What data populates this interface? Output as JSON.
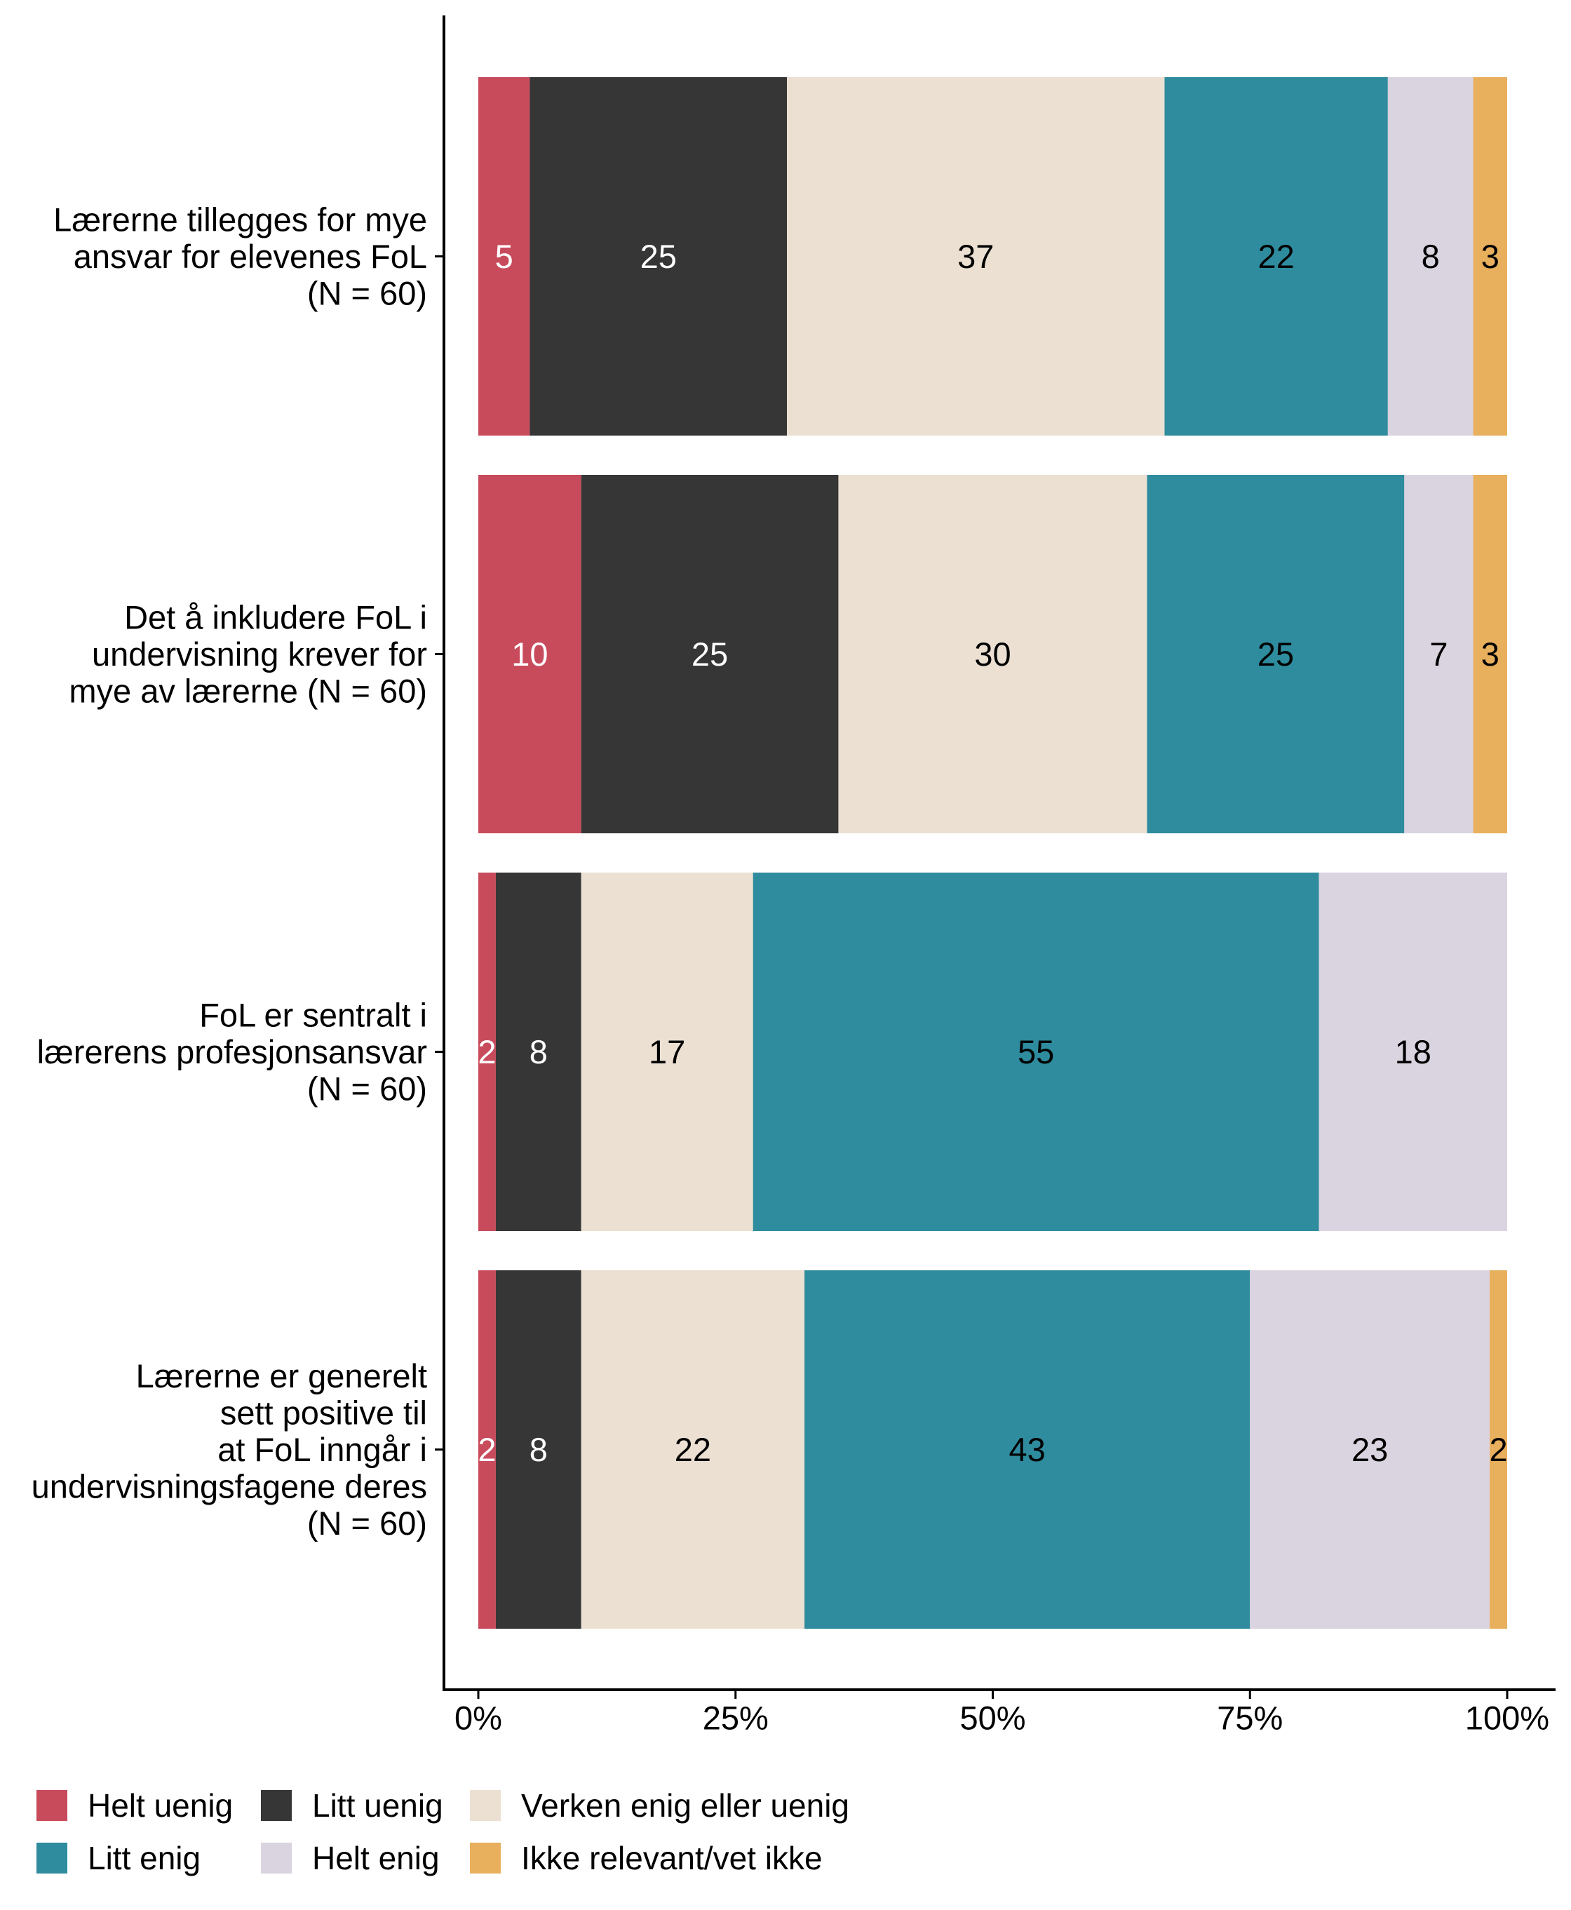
{
  "chart_data": {
    "type": "bar",
    "orientation": "horizontal",
    "stacked": true,
    "title": "",
    "xlabel": "",
    "ylabel": "",
    "xlim": [
      0,
      100
    ],
    "x_ticks": [
      0,
      25,
      50,
      75,
      100
    ],
    "x_tick_labels": [
      "0%",
      "25%",
      "50%",
      "75%",
      "100%"
    ],
    "grid": false,
    "legend_position": "bottom-left",
    "categories": [
      [
        "Lærerne tillegges for mye",
        "ansvar for elevenes FoL",
        "(N = 60)"
      ],
      [
        "Det å inkludere FoL i",
        "undervisning krever for",
        "mye av lærerne (N = 60)"
      ],
      [
        "FoL er sentralt i",
        "lærerens profesjonsansvar",
        "(N = 60)"
      ],
      [
        "Lærerne er generelt",
        "sett positive til",
        "at FoL inngår i",
        "undervisningsfagene deres",
        "(N = 60)"
      ]
    ],
    "series": [
      {
        "name": "Helt uenig",
        "color": "#C84B5C",
        "label_color": "#FFFFFF",
        "values": [
          5.0,
          10.0,
          1.7,
          1.7
        ],
        "labels": [
          "5",
          "10",
          "2",
          "2"
        ]
      },
      {
        "name": "Litt uenig",
        "color": "#363636",
        "label_color": "#FFFFFF",
        "values": [
          25.0,
          25.0,
          8.3,
          8.3
        ],
        "labels": [
          "25",
          "25",
          "8",
          "8"
        ]
      },
      {
        "name": "Verken enig eller uenig",
        "color": "#EBE0D2",
        "label_color": "#000000",
        "values": [
          36.7,
          30.0,
          16.7,
          21.7
        ],
        "labels": [
          "37",
          "30",
          "17",
          "22"
        ]
      },
      {
        "name": "Litt enig",
        "color": "#2E8C9E",
        "label_color": "#000000",
        "values": [
          21.7,
          25.0,
          55.0,
          43.3
        ],
        "labels": [
          "22",
          "25",
          "55",
          "43"
        ]
      },
      {
        "name": "Helt enig",
        "color": "#DAD3E0",
        "label_color": "#000000",
        "values": [
          8.3,
          6.7,
          18.3,
          23.3
        ],
        "labels": [
          "8",
          "7",
          "18",
          "23"
        ]
      },
      {
        "name": "Ikke relevant/vet ikke",
        "color": "#E8AF5C",
        "label_color": "#000000",
        "values": [
          3.3,
          3.3,
          0,
          1.7
        ],
        "labels": [
          "3",
          "3",
          "",
          "2"
        ]
      }
    ],
    "legend_order": [
      [
        "Helt uenig",
        "Litt uenig",
        "Verken enig eller uenig"
      ],
      [
        "Litt enig",
        "Helt enig",
        "Ikke relevant/vet ikke"
      ]
    ]
  }
}
